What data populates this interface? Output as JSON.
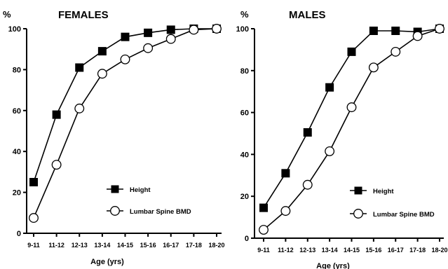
{
  "chart_data": [
    {
      "type": "line",
      "title": "FEMALES",
      "ylabel": "%",
      "xlabel": "Age (yrs)",
      "categories": [
        "9-11",
        "11-12",
        "12-13",
        "13-14",
        "14-15",
        "15-16",
        "16-17",
        "17-18",
        "18-20"
      ],
      "ylim": [
        0,
        100
      ],
      "yticks": [
        0,
        20,
        40,
        60,
        80,
        100
      ],
      "grid": false,
      "legend_position": "bottom-right",
      "series": [
        {
          "name": "Height",
          "marker": "filled-square",
          "values": [
            25,
            58,
            81,
            89,
            96,
            98,
            99.5,
            100,
            100
          ]
        },
        {
          "name": "Lumbar Spine BMD",
          "marker": "open-circle",
          "values": [
            7.5,
            33.5,
            61,
            78,
            85,
            90.5,
            95,
            99.5,
            100
          ]
        }
      ]
    },
    {
      "type": "line",
      "title": "MALES",
      "ylabel": "%",
      "xlabel": "Age (yrs)",
      "categories": [
        "9-11",
        "11-12",
        "12-13",
        "13-14",
        "14-15",
        "15-16",
        "16-17",
        "17-18",
        "18-20"
      ],
      "ylim": [
        0,
        100
      ],
      "yticks": [
        0,
        20,
        40,
        60,
        80,
        100
      ],
      "grid": false,
      "legend_position": "bottom-right",
      "series": [
        {
          "name": "Height",
          "marker": "filled-square",
          "values": [
            14.5,
            31,
            50.5,
            72,
            89,
            99,
            99,
            98.5,
            100
          ]
        },
        {
          "name": "Lumbar Spine BMD",
          "marker": "open-circle",
          "values": [
            4,
            13,
            25.5,
            41.5,
            62.5,
            81.5,
            89,
            96.5,
            100
          ]
        }
      ]
    }
  ],
  "colors": {
    "ink": "#000000",
    "background": "#ffffff"
  }
}
